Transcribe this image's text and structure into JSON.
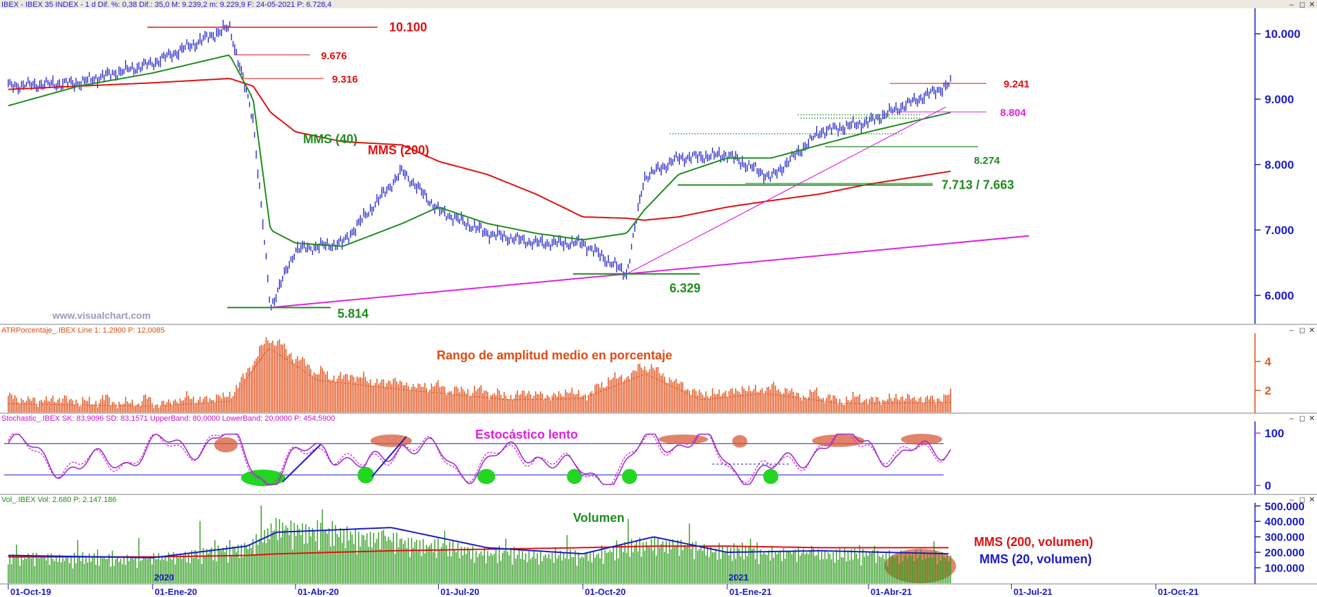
{
  "header": {
    "main": "IBEX - IBEX 35 INDEX -  1 d  Dif. %: 0,38  Dif.: 35,0  M: 9.239,2  m: 9.229,9  F: 24-05-2021  P: 6.728,4",
    "atr": "ATRPorcentaje_.IBEX  Line 1: 1,2900   P: 12,0085",
    "stoch": "Stochastic_.IBEX  SK: 83,9096  SD: 83,1571  UpperBand: 80,0000  LowerBand: 20,0000   P: 454,5900",
    "vol": "Vol_.IBEX  Vol: 2.680   P: 2.147.186"
  },
  "window_buttons": [
    "–",
    "◻",
    "✕"
  ],
  "watermark": "www.visualchart.com",
  "date_labels": [
    "01-Oct-19",
    "01-Ene-20",
    "01-Abr-20",
    "01-Jul-20",
    "01-Oct-20",
    "01-Ene-21",
    "01-Abr-21",
    "01-Jul-21",
    "01-Oct-21"
  ],
  "year_labels": [
    "2020",
    "2021"
  ],
  "colors": {
    "bars": "#1a1ac8",
    "mms40": "#1e8c1e",
    "mms200": "#e01010",
    "trend": "#e020e0",
    "atr": "#e04a10",
    "volume": "#2a9a1a",
    "axis_text": "#1a1ac8"
  },
  "chart_data": [
    {
      "type": "line",
      "name": "price",
      "title": "IBEX 35 INDEX",
      "y_ticks": [
        "10.000",
        "9.000",
        "8.000",
        "7.000",
        "6.000"
      ],
      "ylim": [
        5500,
        10400
      ],
      "x": [
        "2019-10-01",
        "2019-11-15",
        "2020-01-01",
        "2020-02-19",
        "2020-03-05",
        "2020-03-16",
        "2020-04-01",
        "2020-05-01",
        "2020-06-08",
        "2020-07-01",
        "2020-08-01",
        "2020-09-01",
        "2020-10-01",
        "2020-10-29",
        "2020-11-09",
        "2020-12-01",
        "2021-01-01",
        "2021-01-29",
        "2021-03-01",
        "2021-04-01",
        "2021-05-24"
      ],
      "series": [
        {
          "name": "IBEX",
          "values": [
            9200,
            9250,
            9550,
            10100,
            8700,
            5814,
            6700,
            6800,
            7900,
            7300,
            6950,
            6800,
            6800,
            6329,
            7800,
            8100,
            8150,
            7800,
            8500,
            8650,
            9240
          ]
        },
        {
          "name": "MMS (40)",
          "values": [
            8900,
            9200,
            9400,
            9676,
            9000,
            7000,
            6800,
            6750,
            7100,
            7350,
            7100,
            6950,
            6850,
            6950,
            7300,
            7850,
            8100,
            8100,
            8300,
            8500,
            8800
          ]
        },
        {
          "name": "MMS (200)",
          "values": [
            9150,
            9200,
            9250,
            9316,
            9200,
            8800,
            8500,
            8350,
            8300,
            8050,
            7850,
            7550,
            7200,
            7180,
            7150,
            7200,
            7350,
            7450,
            7550,
            7700,
            7900
          ]
        }
      ],
      "levels": [
        {
          "label": "10.100",
          "value": 10100,
          "color": "#e01010"
        },
        {
          "label": "9.676",
          "value": 9676,
          "color": "#e01010"
        },
        {
          "label": "9.316",
          "value": 9316,
          "color": "#e01010"
        },
        {
          "label": "9.241",
          "value": 9241,
          "color": "#e01010"
        },
        {
          "label": "8.804",
          "value": 8804,
          "color": "#e020e0"
        },
        {
          "label": "8.274",
          "value": 8274,
          "color": "#1e8c1e"
        },
        {
          "label": "7.713 / 7.663",
          "value": 7688,
          "color": "#1e8c1e"
        },
        {
          "label": "6.329",
          "value": 6329,
          "color": "#1e8c1e"
        },
        {
          "label": "5.814",
          "value": 5814,
          "color": "#1e8c1e"
        }
      ],
      "annotations": [
        "MMS (40)",
        "MMS (200)"
      ]
    },
    {
      "type": "bar",
      "name": "atr",
      "title": "Rango de amplitud medio en porcentaje",
      "y_ticks": [
        "4",
        "2"
      ],
      "ylim": [
        0,
        5.5
      ],
      "x": [
        "2019-10-01",
        "2020-01-01",
        "2020-02-20",
        "2020-03-15",
        "2020-04-15",
        "2020-06-15",
        "2020-08-15",
        "2020-10-01",
        "2020-11-10",
        "2020-12-15",
        "2021-01-25",
        "2021-03-15",
        "2021-05-24"
      ],
      "values": [
        1.2,
        1.0,
        1.4,
        5.5,
        3.0,
        2.2,
        1.5,
        1.6,
        3.5,
        1.5,
        2.0,
        1.2,
        1.3
      ]
    },
    {
      "type": "line",
      "name": "stochastic",
      "title": "Estocástico lento",
      "y_ticks": [
        "100",
        "0"
      ],
      "ylim": [
        0,
        100
      ],
      "bands": [
        80,
        20
      ],
      "x": [
        "2019-10-01",
        "2019-11-15",
        "2020-01-01",
        "2020-02-19",
        "2020-03-15",
        "2020-04-20",
        "2020-05-15",
        "2020-06-08",
        "2020-07-15",
        "2020-09-01",
        "2020-09-25",
        "2020-10-25",
        "2020-11-15",
        "2020-12-15",
        "2021-01-05",
        "2021-01-29",
        "2021-03-01",
        "2021-04-01",
        "2021-04-20",
        "2021-05-24"
      ],
      "series": [
        {
          "name": "SK",
          "values": [
            80,
            30,
            70,
            90,
            10,
            85,
            20,
            90,
            30,
            70,
            20,
            25,
            90,
            85,
            35,
            20,
            80,
            90,
            45,
            84
          ]
        },
        {
          "name": "SD",
          "values": [
            78,
            32,
            68,
            88,
            12,
            83,
            22,
            88,
            32,
            68,
            22,
            27,
            88,
            83,
            37,
            22,
            78,
            88,
            47,
            83
          ]
        }
      ]
    },
    {
      "type": "bar",
      "name": "volume",
      "title": "Volumen",
      "y_ticks": [
        "500.000",
        "400.000",
        "300.000",
        "200.000",
        "100.000"
      ],
      "ylim": [
        0,
        520000
      ],
      "x": [
        "2019-10-01",
        "2020-01-01",
        "2020-03-01",
        "2020-03-20",
        "2020-06-01",
        "2020-08-01",
        "2020-10-01",
        "2020-11-15",
        "2021-01-01",
        "2021-03-01",
        "2021-05-24"
      ],
      "values": [
        170000,
        160000,
        250000,
        400000,
        300000,
        200000,
        180000,
        280000,
        220000,
        200000,
        180000
      ],
      "series": [
        {
          "name": "MMS (200, volumen)",
          "values": [
            170000,
            170000,
            180000,
            190000,
            210000,
            220000,
            230000,
            240000,
            240000,
            230000,
            230000
          ]
        },
        {
          "name": "MMS (20, volumen)",
          "values": [
            180000,
            165000,
            240000,
            330000,
            360000,
            230000,
            190000,
            300000,
            200000,
            210000,
            190000
          ]
        }
      ]
    }
  ]
}
